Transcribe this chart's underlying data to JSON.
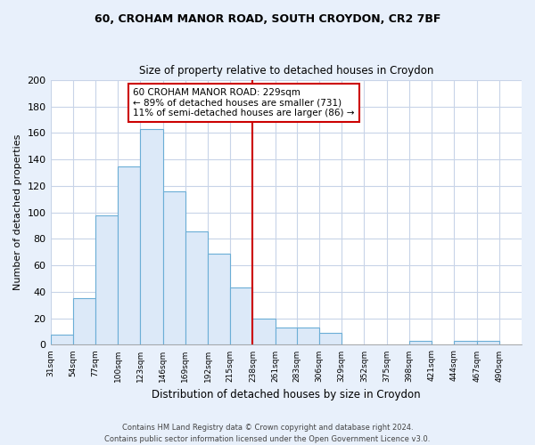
{
  "title": "60, CROHAM MANOR ROAD, SOUTH CROYDON, CR2 7BF",
  "subtitle": "Size of property relative to detached houses in Croydon",
  "xlabel": "Distribution of detached houses by size in Croydon",
  "ylabel": "Number of detached properties",
  "bar_left_edges": [
    31,
    54,
    77,
    100,
    123,
    146,
    169,
    192,
    215,
    238,
    261,
    283,
    306,
    329,
    352,
    375,
    398,
    421,
    444,
    467
  ],
  "bar_heights": [
    8,
    35,
    98,
    135,
    163,
    116,
    86,
    69,
    43,
    20,
    13,
    13,
    9,
    0,
    0,
    0,
    3,
    0,
    3,
    3
  ],
  "bin_width": 23,
  "bar_color": "#dce9f8",
  "bar_edge_color": "#6baed6",
  "reference_line_x": 238,
  "reference_line_color": "#cc0000",
  "annotation_text_line1": "60 CROHAM MANOR ROAD: 229sqm",
  "annotation_text_line2": "← 89% of detached houses are smaller (731)",
  "annotation_text_line3": "11% of semi-detached houses are larger (86) →",
  "xlim_left": 31,
  "xlim_right": 513,
  "ylim_top": 200,
  "yticks": [
    0,
    20,
    40,
    60,
    80,
    100,
    120,
    140,
    160,
    180,
    200
  ],
  "tick_labels": [
    "31sqm",
    "54sqm",
    "77sqm",
    "100sqm",
    "123sqm",
    "146sqm",
    "169sqm",
    "192sqm",
    "215sqm",
    "238sqm",
    "261sqm",
    "283sqm",
    "306sqm",
    "329sqm",
    "352sqm",
    "375sqm",
    "398sqm",
    "421sqm",
    "444sqm",
    "467sqm",
    "490sqm"
  ],
  "tick_positions": [
    31,
    54,
    77,
    100,
    123,
    146,
    169,
    192,
    215,
    238,
    261,
    283,
    306,
    329,
    352,
    375,
    398,
    421,
    444,
    467,
    490
  ],
  "footer_line1": "Contains HM Land Registry data © Crown copyright and database right 2024.",
  "footer_line2": "Contains public sector information licensed under the Open Government Licence v3.0.",
  "fig_background_color": "#e8f0fb",
  "plot_background_color": "#ffffff",
  "grid_color": "#c8d4e8"
}
